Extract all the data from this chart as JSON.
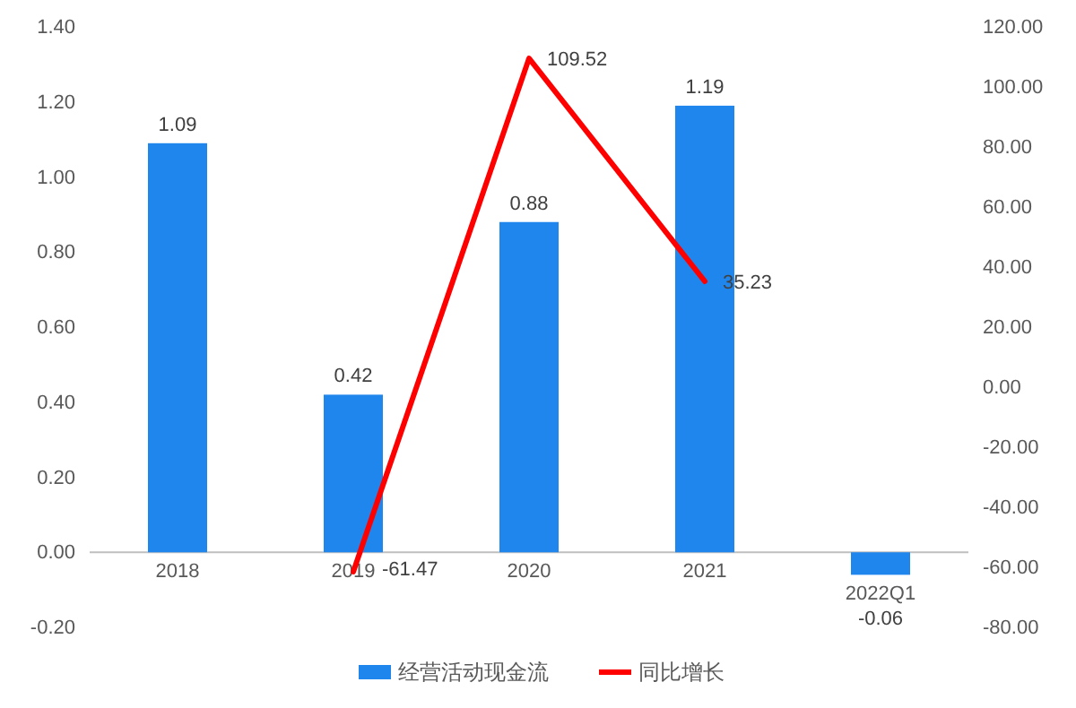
{
  "chart_data": {
    "type": "bar",
    "categories": [
      "2018",
      "2019",
      "2020",
      "2021",
      "2022Q1"
    ],
    "series": [
      {
        "name": "经营活动现金流",
        "color": "#1f86ee",
        "values": [
          1.09,
          0.42,
          0.88,
          1.19,
          -0.06
        ]
      },
      {
        "name": "同比增长",
        "type": "line",
        "axis": "y2",
        "color": "#ff0000",
        "values": [
          null,
          -61.47,
          109.52,
          35.23,
          null
        ]
      }
    ],
    "ylim": [
      -0.2,
      1.4
    ],
    "yticks": [
      {
        "value": -0.2,
        "label": "-0.20"
      },
      {
        "value": 0,
        "label": "0.00"
      },
      {
        "value": 0.2,
        "label": "0.20"
      },
      {
        "value": 0.4,
        "label": "0.40"
      },
      {
        "value": 0.6,
        "label": "0.60"
      },
      {
        "value": 0.8,
        "label": "0.80"
      },
      {
        "value": 1.0,
        "label": "1.00"
      },
      {
        "value": 1.2,
        "label": "1.20"
      },
      {
        "value": 1.4,
        "label": "1.40"
      }
    ],
    "y2lim": [
      -80,
      120
    ],
    "y2ticks": [
      {
        "value": -80,
        "label": "-80.00"
      },
      {
        "value": -60,
        "label": "-60.00"
      },
      {
        "value": -40,
        "label": "-40.00"
      },
      {
        "value": -20,
        "label": "-20.00"
      },
      {
        "value": 0,
        "label": "0.00"
      },
      {
        "value": 20,
        "label": "20.00"
      },
      {
        "value": 40,
        "label": "40.00"
      },
      {
        "value": 60,
        "label": "60.00"
      },
      {
        "value": 80,
        "label": "80.00"
      },
      {
        "value": 100,
        "label": "100.00"
      },
      {
        "value": 120,
        "label": "120.00"
      }
    ],
    "data_labels": true,
    "legend": "bottom",
    "grid": false,
    "marker": "none",
    "line_style": "solid"
  }
}
